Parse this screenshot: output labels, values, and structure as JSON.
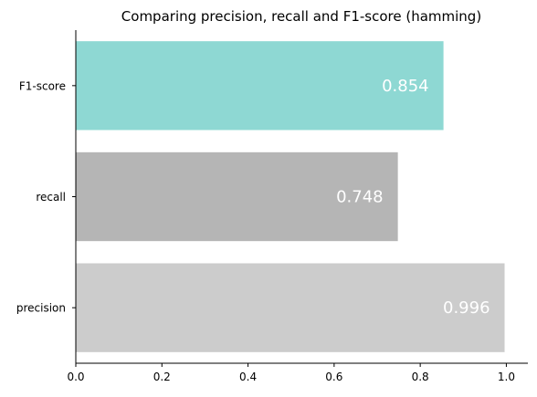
{
  "chart_data": {
    "type": "bar",
    "orientation": "horizontal",
    "title": "Comparing precision, recall and F1-score (hamming)",
    "xlabel": "",
    "ylabel": "",
    "categories": [
      "precision",
      "recall",
      "F1-score"
    ],
    "values": [
      0.996,
      0.748,
      0.854
    ],
    "data_labels": [
      "0.996",
      "0.748",
      "0.854"
    ],
    "colors": [
      "#cccccc",
      "#b5b5b5",
      "#8ed8d3"
    ],
    "label_color": "#ffffff",
    "xlim": [
      0,
      1.05
    ],
    "xticks": [
      0.0,
      0.2,
      0.4,
      0.6,
      0.8,
      1.0
    ],
    "xtick_labels": [
      "0.0",
      "0.2",
      "0.4",
      "0.6",
      "0.8",
      "1.0"
    ],
    "grid": false,
    "legend": "none",
    "spines": [
      "left",
      "bottom"
    ]
  }
}
